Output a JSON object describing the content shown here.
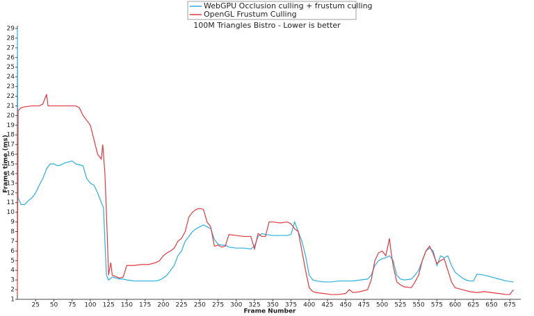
{
  "chart_data": {
    "type": "line",
    "title": "100M Triangles Bistro - Lower is better",
    "x_label": "Frame Number",
    "y_label": "Frame time (ms)",
    "xlim": [
      0,
      690
    ],
    "ylim": [
      1,
      29
    ],
    "xticks": [
      25,
      50,
      75,
      100,
      125,
      150,
      175,
      200,
      225,
      250,
      275,
      300,
      325,
      350,
      375,
      400,
      425,
      450,
      475,
      500,
      525,
      550,
      575,
      600,
      625,
      650,
      675
    ],
    "yticks": [
      1,
      2,
      3,
      4,
      5,
      6,
      7,
      8,
      9,
      10,
      11,
      12,
      13,
      14,
      15,
      16,
      17,
      18,
      19,
      20,
      21,
      22,
      23,
      24,
      25,
      26,
      27,
      28,
      29
    ],
    "grid": false,
    "legend": "top",
    "series": [
      {
        "name": "WebGPU Occlusion culling + frustum culling",
        "color": "#2aaee0",
        "x": [
          0,
          1,
          5,
          10,
          15,
          20,
          25,
          30,
          35,
          40,
          45,
          50,
          55,
          60,
          65,
          70,
          75,
          80,
          85,
          90,
          95,
          100,
          105,
          110,
          115,
          118,
          120,
          122,
          125,
          130,
          135,
          140,
          145,
          150,
          160,
          170,
          180,
          190,
          195,
          200,
          205,
          210,
          215,
          220,
          225,
          230,
          235,
          240,
          245,
          250,
          255,
          260,
          265,
          270,
          275,
          280,
          285,
          290,
          300,
          310,
          320,
          325,
          330,
          335,
          340,
          350,
          360,
          370,
          375,
          380,
          385,
          390,
          395,
          400,
          405,
          410,
          420,
          430,
          440,
          450,
          460,
          470,
          480,
          485,
          490,
          495,
          500,
          505,
          510,
          515,
          520,
          525,
          530,
          540,
          545,
          550,
          555,
          560,
          565,
          570,
          575,
          580,
          585,
          590,
          595,
          600,
          605,
          610,
          615,
          620,
          625,
          630,
          640,
          650,
          660,
          670,
          680
        ],
        "values": [
          29,
          11.5,
          10.8,
          10.8,
          11.2,
          11.5,
          12,
          12.8,
          13.5,
          14.5,
          15,
          15,
          14.8,
          14.9,
          15.1,
          15.2,
          15.3,
          15,
          14.9,
          14.8,
          13.5,
          13,
          12.8,
          12,
          11,
          10.5,
          7,
          3.5,
          3,
          3.3,
          3.2,
          3.1,
          3.1,
          3,
          2.9,
          2.9,
          2.9,
          2.9,
          3,
          3.2,
          3.5,
          4,
          4.5,
          5.5,
          6,
          7,
          7.5,
          8,
          8.3,
          8.5,
          8.7,
          8.5,
          8.3,
          7.2,
          6.7,
          6.6,
          6.6,
          6.4,
          6.3,
          6.3,
          6.2,
          6.5,
          7.5,
          7.8,
          7.7,
          7.6,
          7.6,
          7.6,
          7.7,
          9,
          8,
          7,
          5.5,
          3.5,
          3,
          2.9,
          2.8,
          2.8,
          2.9,
          2.9,
          2.9,
          3,
          3.1,
          3.5,
          4.5,
          5,
          5.2,
          5.3,
          5.5,
          5,
          3.5,
          3.1,
          3,
          3.1,
          3.5,
          4,
          5,
          6,
          6.3,
          6,
          4.5,
          5.5,
          5.3,
          5.5,
          4.5,
          3.8,
          3.5,
          3.2,
          3,
          2.9,
          2.9,
          3.6,
          3.5,
          3.3,
          3.1,
          2.9,
          2.8
        ]
      },
      {
        "name": "OpenGL Frustum Culling",
        "color": "#e0383e",
        "x": [
          0,
          1,
          5,
          10,
          20,
          30,
          35,
          40,
          42,
          50,
          60,
          70,
          80,
          85,
          90,
          95,
          100,
          105,
          110,
          115,
          117,
          120,
          123,
          125,
          128,
          130,
          140,
          145,
          150,
          160,
          170,
          180,
          190,
          195,
          200,
          205,
          210,
          215,
          220,
          225,
          230,
          235,
          240,
          245,
          250,
          255,
          260,
          265,
          270,
          275,
          280,
          285,
          290,
          300,
          310,
          320,
          325,
          330,
          335,
          340,
          345,
          350,
          360,
          370,
          375,
          380,
          385,
          390,
          395,
          400,
          405,
          410,
          420,
          430,
          440,
          450,
          455,
          460,
          470,
          480,
          485,
          490,
          495,
          500,
          505,
          510,
          512,
          515,
          520,
          525,
          530,
          540,
          545,
          550,
          555,
          560,
          565,
          570,
          575,
          580,
          585,
          590,
          595,
          600,
          610,
          620,
          630,
          640,
          650,
          660,
          670,
          675,
          680
        ],
        "values": [
          1.5,
          20.5,
          20.8,
          20.9,
          21,
          21,
          21.2,
          22.2,
          21,
          21,
          21,
          21,
          21,
          20.8,
          20,
          19.5,
          19,
          17.5,
          16,
          15.5,
          17,
          14,
          8,
          3.5,
          4.8,
          3.5,
          3.2,
          3.3,
          4.5,
          4.5,
          4.6,
          4.6,
          4.8,
          5,
          5.5,
          5.8,
          6,
          6.3,
          7,
          7.3,
          8,
          9.5,
          10,
          10.3,
          10.4,
          10.3,
          9,
          8.5,
          6.5,
          6.6,
          6.4,
          6.5,
          7.7,
          7.6,
          7.5,
          7.5,
          6.2,
          7.8,
          7.5,
          7.5,
          9,
          9,
          8.9,
          9,
          8.8,
          8.3,
          8,
          6,
          4,
          2.2,
          1.8,
          1.7,
          1.6,
          1.5,
          1.5,
          1.6,
          2,
          1.7,
          1.8,
          2,
          3,
          5,
          5.8,
          6,
          5.5,
          7.3,
          6,
          4.5,
          2.8,
          2.5,
          2.3,
          2.2,
          2.8,
          3.5,
          5,
          6,
          6.5,
          5.7,
          4.7,
          5,
          5.2,
          4,
          2.8,
          2.2,
          2,
          1.8,
          1.7,
          1.8,
          1.7,
          1.6,
          1.5,
          1.5,
          2
        ]
      }
    ]
  }
}
